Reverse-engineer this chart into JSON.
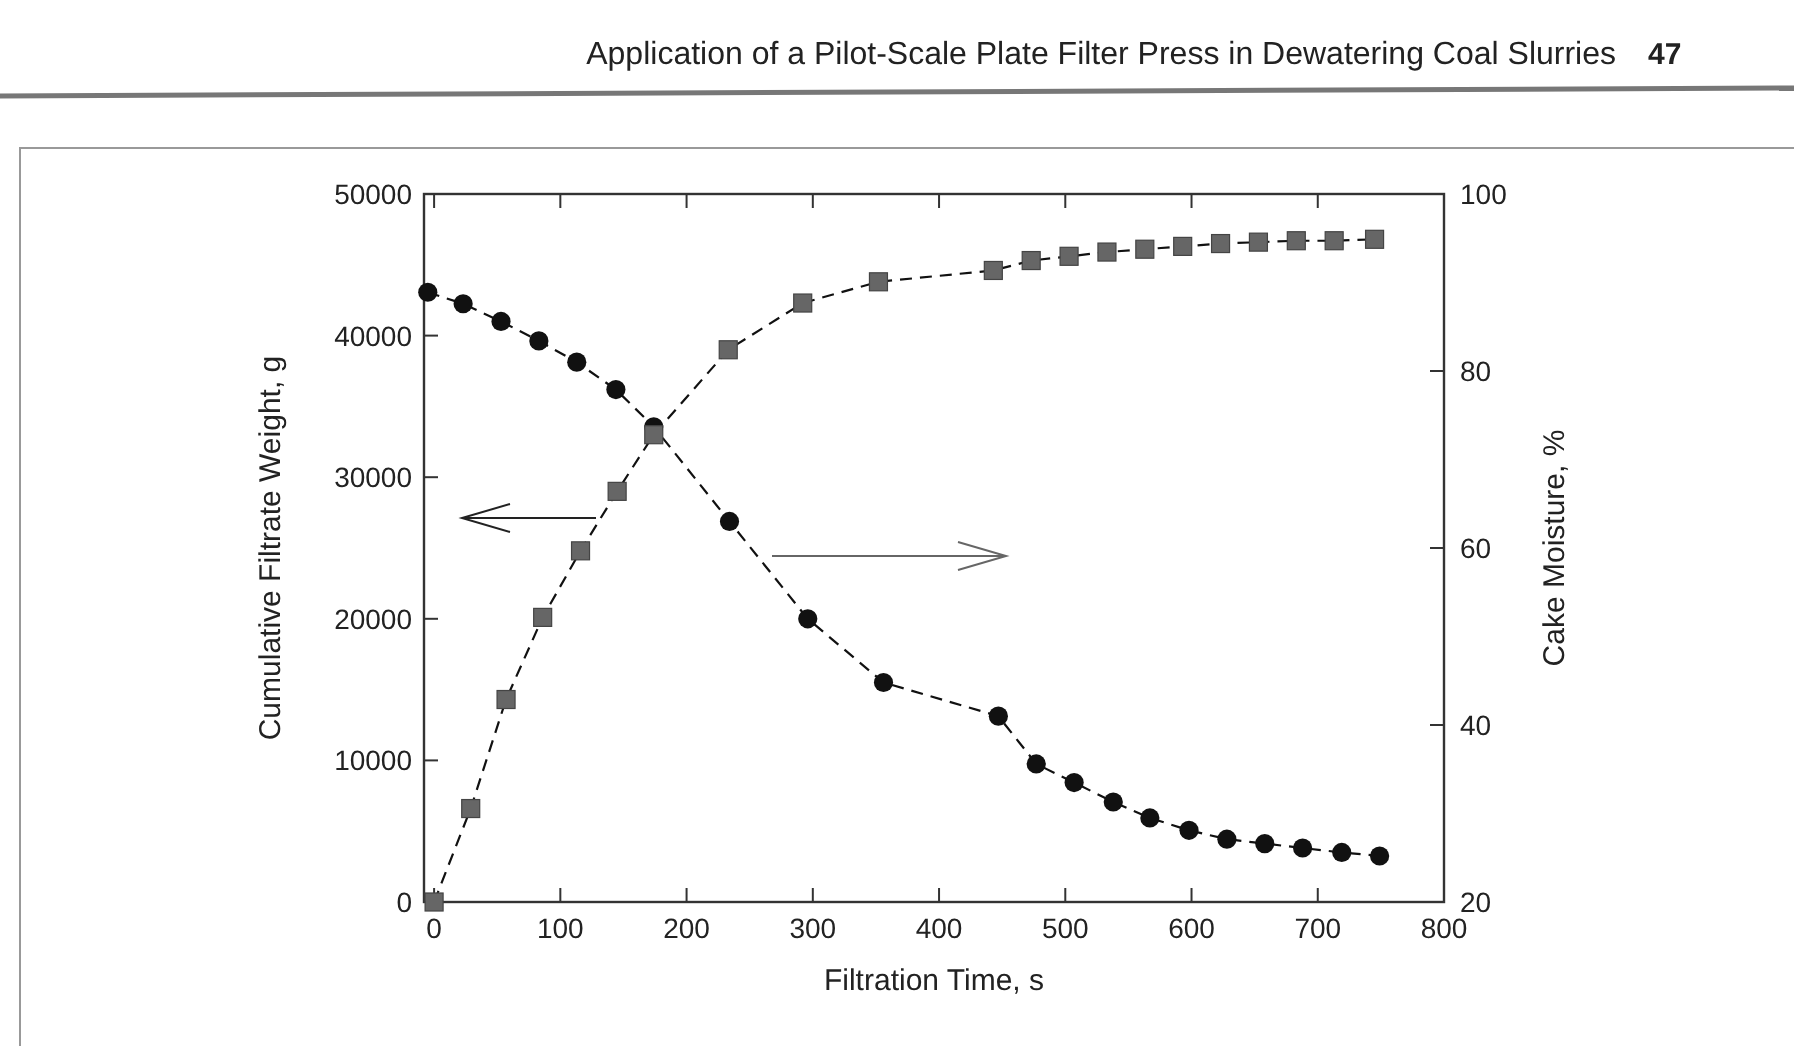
{
  "chart_data": {
    "type": "line",
    "xlabel": "Filtration Time, s",
    "ylabel": "Cumulative Filtrate Weight, g",
    "y2label": "Cake Moisture, %",
    "annotations": [
      "Application of a Pilot-Scale Plate Filter Press in Dewatering Coal Slurries",
      "47"
    ],
    "xlim": [
      -8,
      800
    ],
    "xticks": [
      0,
      100,
      200,
      300,
      400,
      500,
      600,
      700,
      800
    ],
    "ylim": [
      0,
      50000
    ],
    "yticks": [
      0,
      10000,
      20000,
      30000,
      40000,
      50000
    ],
    "y2lim": [
      20,
      100
    ],
    "y2ticks": [
      20,
      40,
      60,
      80,
      100
    ],
    "grid": false,
    "line_style": "dashed",
    "series": [
      {
        "color": "#666666",
        "marker": "square",
        "x": [
          0,
          29,
          57,
          86,
          116,
          145,
          174,
          233,
          292,
          352,
          443,
          473,
          503,
          533,
          563,
          593,
          623,
          653,
          683,
          713,
          745
        ],
        "values": [
          0,
          6600,
          14300,
          20100,
          24800,
          29000,
          33000,
          39000,
          42300,
          43800,
          44600,
          45300,
          45600,
          45900,
          46100,
          46300,
          46500,
          46600,
          46700,
          46700,
          46800
        ]
      },
      {
        "color": "#111111",
        "marker": "circle",
        "axis": "y2",
        "x": [
          -5,
          23,
          53,
          83,
          113,
          144,
          174,
          234,
          296,
          356,
          447,
          477,
          507,
          538,
          567,
          598,
          628,
          658,
          688,
          719,
          749
        ],
        "values": [
          88.9,
          87.6,
          85.6,
          83.4,
          81.0,
          77.9,
          73.7,
          63.0,
          52.0,
          44.8,
          41.0,
          35.6,
          33.5,
          31.3,
          29.5,
          28.1,
          27.1,
          26.6,
          26.1,
          25.6,
          25.2
        ]
      }
    ]
  }
}
